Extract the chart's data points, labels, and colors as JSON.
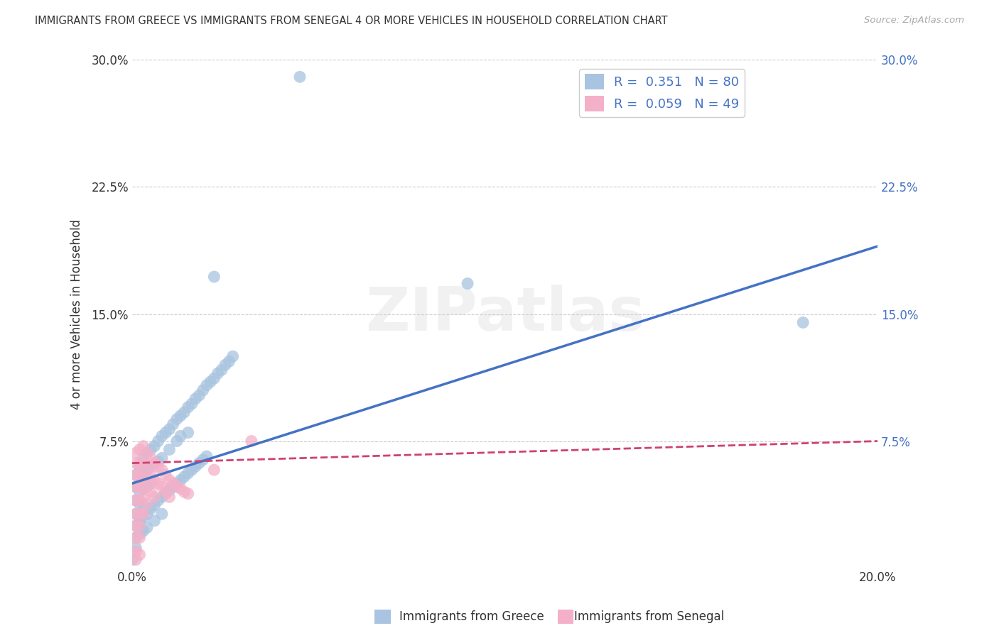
{
  "title": "IMMIGRANTS FROM GREECE VS IMMIGRANTS FROM SENEGAL 4 OR MORE VEHICLES IN HOUSEHOLD CORRELATION CHART",
  "source": "Source: ZipAtlas.com",
  "ylabel": "4 or more Vehicles in Household",
  "xlim": [
    0.0,
    0.2
  ],
  "ylim": [
    0.0,
    0.3
  ],
  "xtick_pos": [
    0.0,
    0.05,
    0.1,
    0.15,
    0.2
  ],
  "ytick_pos": [
    0.0,
    0.075,
    0.15,
    0.225,
    0.3
  ],
  "xtick_labels": [
    "0.0%",
    "",
    "",
    "",
    "20.0%"
  ],
  "ytick_labels": [
    "",
    "7.5%",
    "15.0%",
    "22.5%",
    "30.0%"
  ],
  "greece_color": "#a8c4e0",
  "greece_line_color": "#4472c4",
  "senegal_color": "#f4b0c8",
  "senegal_line_color": "#d04070",
  "greece_R": "0.351",
  "greece_N": "80",
  "senegal_R": "0.059",
  "senegal_N": "49",
  "legend_label_greece": "Immigrants from Greece",
  "legend_label_senegal": "Immigrants from Senegal",
  "watermark": "ZIPatlas",
  "bg_color": "#ffffff",
  "grid_color": "#cccccc",
  "text_color": "#333333",
  "source_color": "#aaaaaa",
  "right_tick_color": "#4472c4",
  "legend_text_color": "#4472c4",
  "greece_line_start_y": 0.05,
  "greece_line_end_y": 0.19,
  "senegal_line_start_y": 0.062,
  "senegal_line_end_y": 0.075,
  "greece_scatter_x": [
    0.001,
    0.001,
    0.001,
    0.001,
    0.002,
    0.002,
    0.002,
    0.002,
    0.002,
    0.003,
    0.003,
    0.003,
    0.003,
    0.004,
    0.004,
    0.004,
    0.005,
    0.005,
    0.005,
    0.006,
    0.006,
    0.007,
    0.007,
    0.008,
    0.008,
    0.009,
    0.01,
    0.01,
    0.011,
    0.012,
    0.012,
    0.013,
    0.013,
    0.014,
    0.015,
    0.015,
    0.016,
    0.017,
    0.018,
    0.019,
    0.02,
    0.021,
    0.022,
    0.023,
    0.024,
    0.025,
    0.026,
    0.027,
    0.001,
    0.001,
    0.002,
    0.002,
    0.003,
    0.003,
    0.004,
    0.004,
    0.005,
    0.006,
    0.006,
    0.007,
    0.008,
    0.008,
    0.009,
    0.01,
    0.011,
    0.012,
    0.013,
    0.014,
    0.015,
    0.016,
    0.017,
    0.018,
    0.019,
    0.02,
    0.045,
    0.022,
    0.09,
    0.18,
    0.0,
    0.001
  ],
  "greece_scatter_y": [
    0.055,
    0.048,
    0.04,
    0.032,
    0.06,
    0.052,
    0.045,
    0.038,
    0.03,
    0.065,
    0.055,
    0.047,
    0.038,
    0.068,
    0.058,
    0.048,
    0.07,
    0.06,
    0.05,
    0.072,
    0.062,
    0.075,
    0.063,
    0.078,
    0.065,
    0.08,
    0.082,
    0.07,
    0.085,
    0.088,
    0.075,
    0.09,
    0.078,
    0.092,
    0.095,
    0.08,
    0.097,
    0.1,
    0.102,
    0.105,
    0.108,
    0.11,
    0.112,
    0.115,
    0.117,
    0.12,
    0.122,
    0.125,
    0.025,
    0.018,
    0.028,
    0.02,
    0.03,
    0.022,
    0.032,
    0.024,
    0.035,
    0.037,
    0.028,
    0.04,
    0.042,
    0.032,
    0.044,
    0.046,
    0.048,
    0.05,
    0.052,
    0.054,
    0.056,
    0.058,
    0.06,
    0.062,
    0.064,
    0.066,
    0.29,
    0.172,
    0.168,
    0.145,
    0.005,
    0.012
  ],
  "senegal_scatter_x": [
    0.001,
    0.001,
    0.001,
    0.001,
    0.001,
    0.001,
    0.001,
    0.001,
    0.001,
    0.002,
    0.002,
    0.002,
    0.002,
    0.002,
    0.002,
    0.002,
    0.002,
    0.003,
    0.003,
    0.003,
    0.003,
    0.003,
    0.004,
    0.004,
    0.004,
    0.004,
    0.005,
    0.005,
    0.005,
    0.006,
    0.006,
    0.006,
    0.007,
    0.007,
    0.008,
    0.008,
    0.009,
    0.009,
    0.01,
    0.01,
    0.011,
    0.012,
    0.013,
    0.014,
    0.015,
    0.022,
    0.032,
    0.001,
    0.002
  ],
  "senegal_scatter_y": [
    0.068,
    0.062,
    0.055,
    0.048,
    0.04,
    0.032,
    0.025,
    0.018,
    0.01,
    0.07,
    0.062,
    0.055,
    0.048,
    0.04,
    0.032,
    0.025,
    0.018,
    0.072,
    0.062,
    0.052,
    0.042,
    0.032,
    0.068,
    0.058,
    0.048,
    0.038,
    0.065,
    0.055,
    0.045,
    0.062,
    0.052,
    0.042,
    0.06,
    0.05,
    0.058,
    0.048,
    0.055,
    0.045,
    0.052,
    0.042,
    0.05,
    0.048,
    0.047,
    0.045,
    0.044,
    0.058,
    0.075,
    0.005,
    0.008
  ]
}
